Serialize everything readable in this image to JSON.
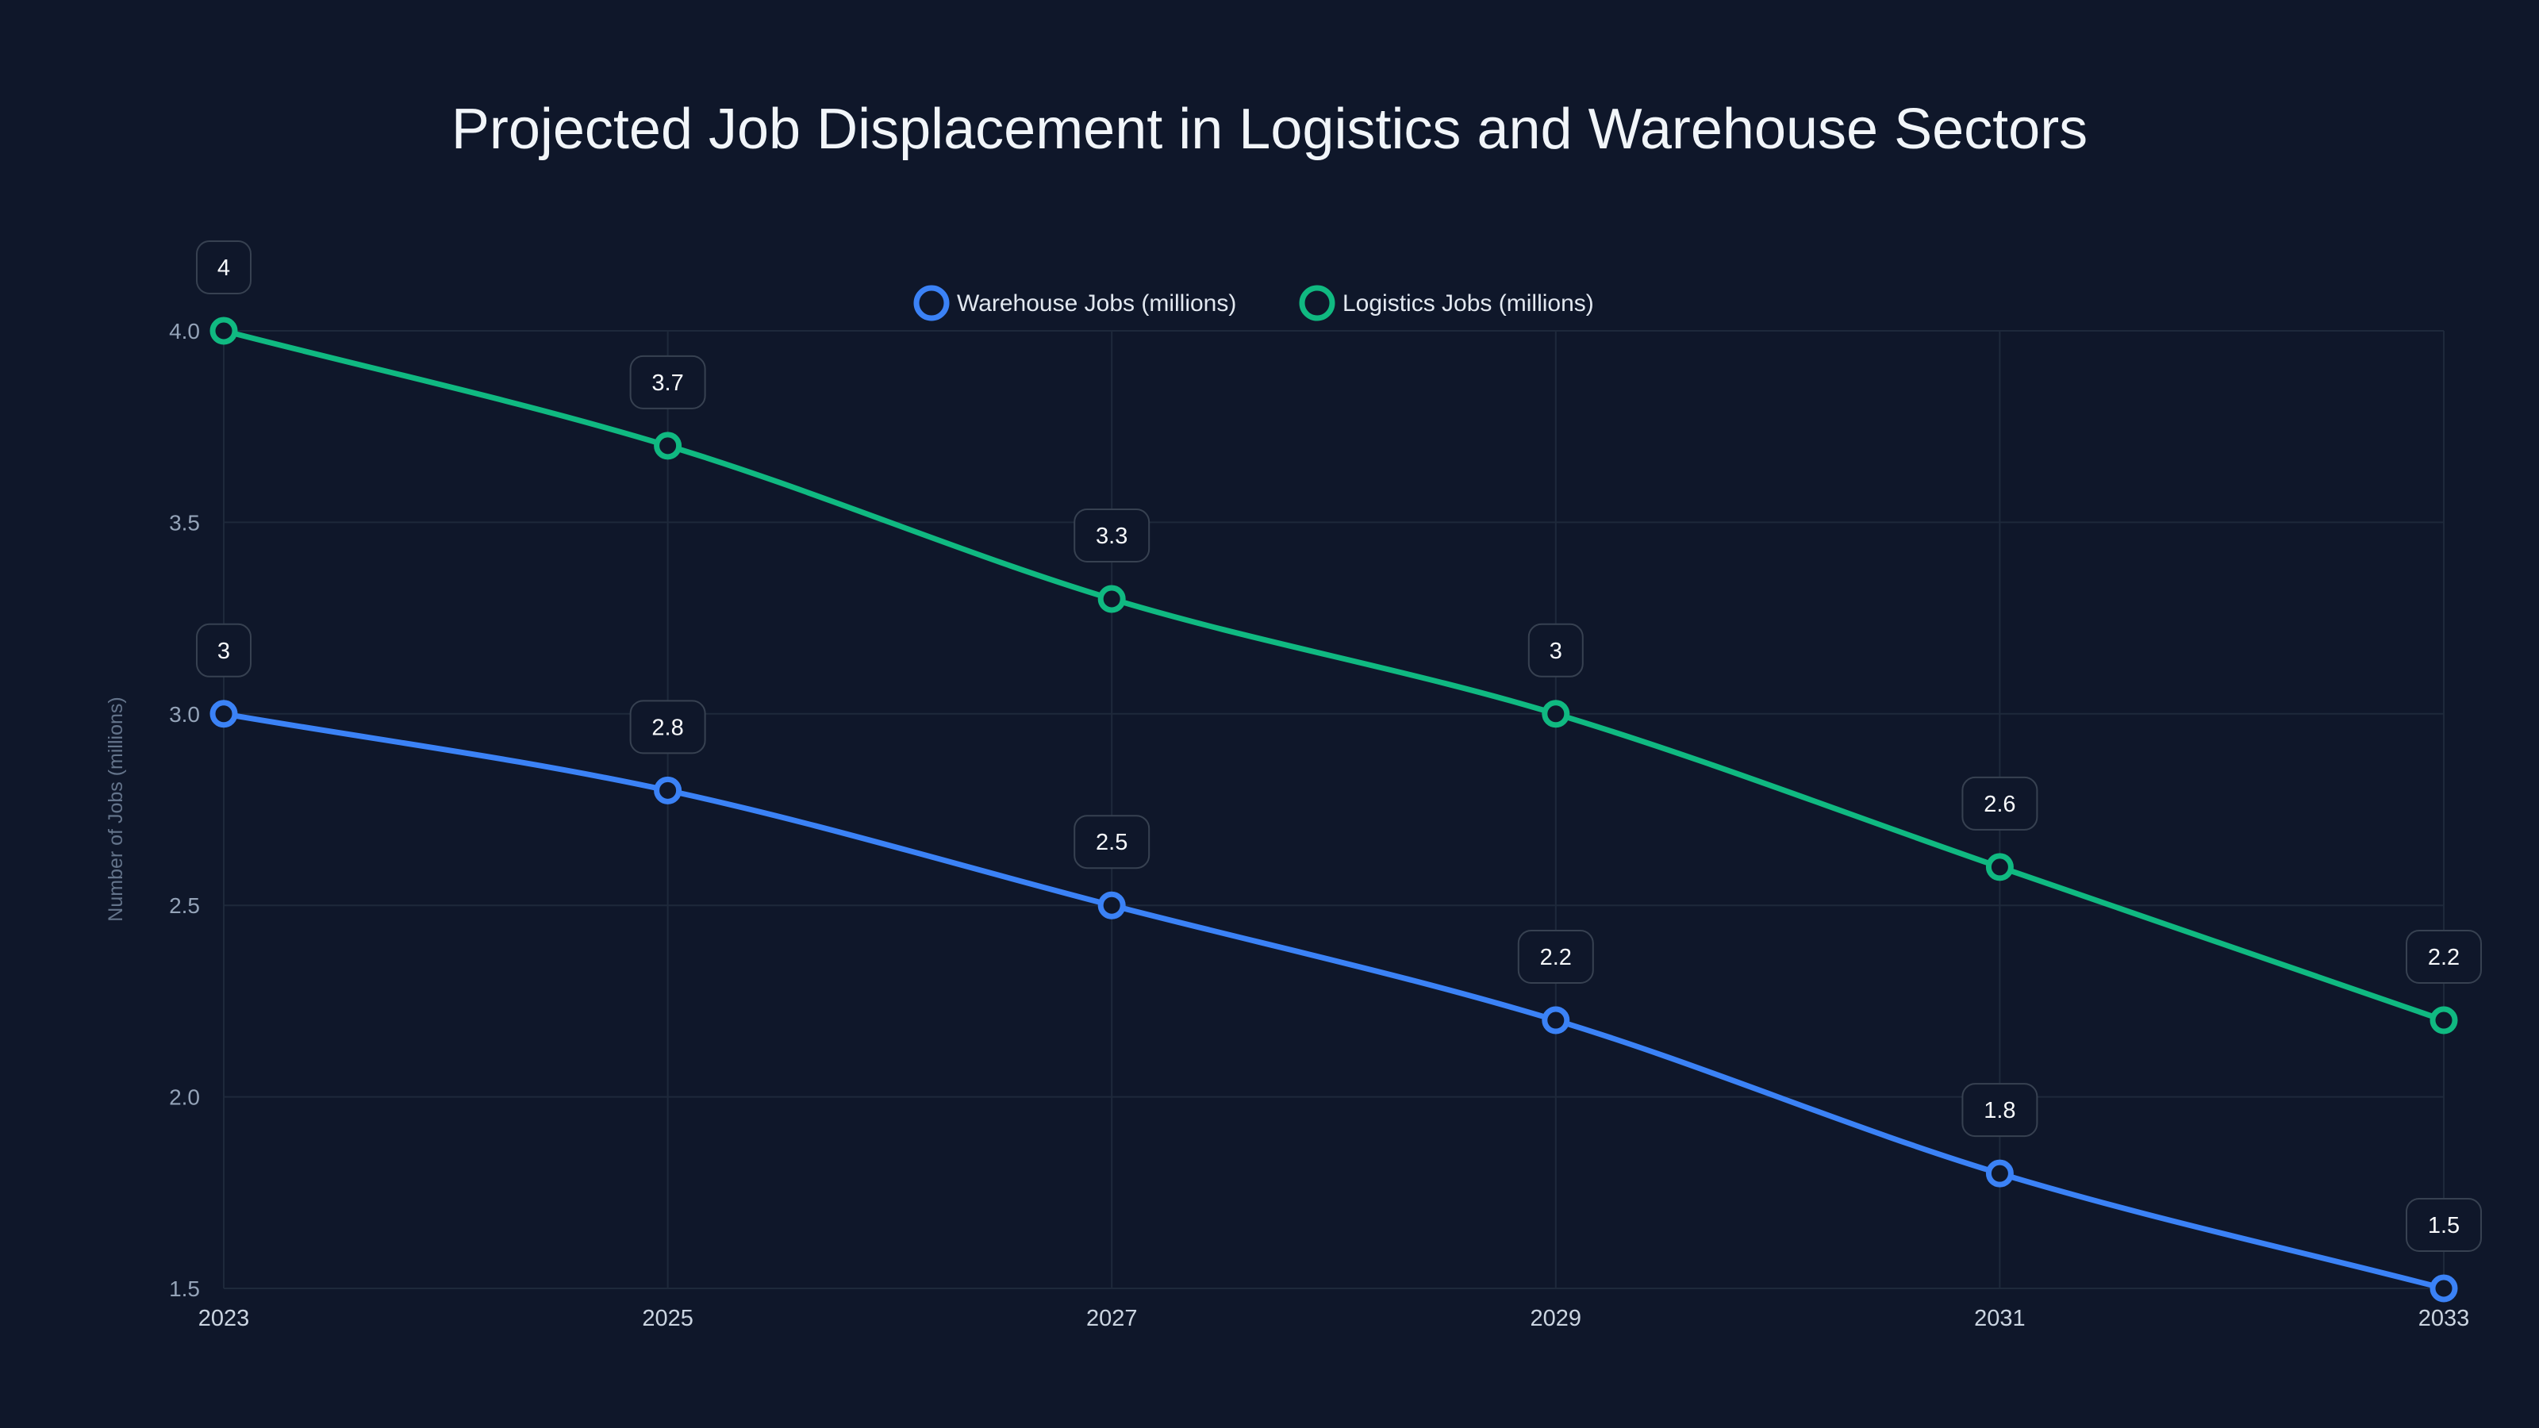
{
  "chart_data": {
    "type": "line",
    "title": "Projected Job Displacement in Logistics and Warehouse Sectors",
    "xlabel": "",
    "ylabel": "Number of Jobs (millions)",
    "x": [
      "2023",
      "2025",
      "2027",
      "2029",
      "2031",
      "2033"
    ],
    "ylim": [
      1.5,
      4.0
    ],
    "yticks": [
      "1.5",
      "2.0",
      "2.5",
      "3.0",
      "3.5",
      "4.0"
    ],
    "grid": true,
    "legend_position": "top-center",
    "series": [
      {
        "name": "Warehouse Jobs (millions)",
        "color": "#3b82f6",
        "values": [
          3,
          2.8,
          2.5,
          2.2,
          1.8,
          1.5
        ],
        "labels": [
          "3",
          "2.8",
          "2.5",
          "2.2",
          "1.8",
          "1.5"
        ]
      },
      {
        "name": "Logistics Jobs (millions)",
        "color": "#10b981",
        "values": [
          4,
          3.7,
          3.3,
          3,
          2.6,
          2.2
        ],
        "labels": [
          "4",
          "3.7",
          "3.3",
          "3",
          "2.6",
          "2.2"
        ]
      }
    ]
  }
}
